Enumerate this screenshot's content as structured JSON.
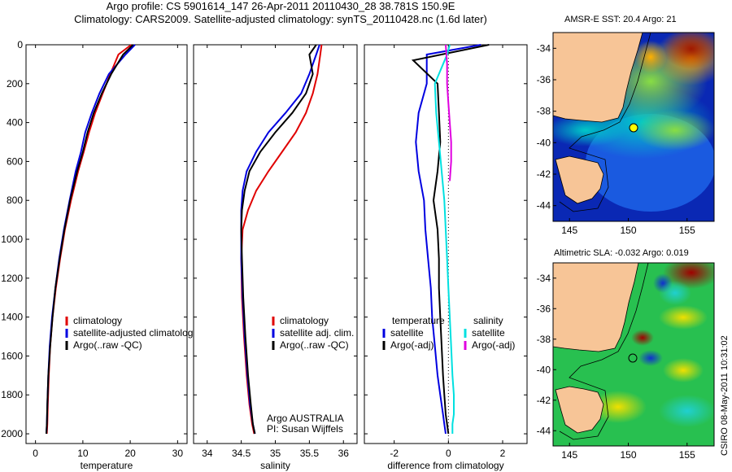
{
  "header": {
    "title_line1": "Argo profile: CS 5901614_147 26-Apr-2011 20110430_28 38.781S 150.9E",
    "title_line2": "Climatology: CARS2009. Satellite-adjusted climatology: synTS_20110428.nc (1.6d later)"
  },
  "map_sst": {
    "title": "AMSR-E SST: 20.4 Argo: 21"
  },
  "map_sla": {
    "title": "Altimetric SLA: -0.032 Argo: 0.019"
  },
  "stamp": "CSIRO 08-May-2011 10:31:02",
  "colors": {
    "climatology": "#e00000",
    "satellite": "#0000e0",
    "argo": "#000000",
    "satellite_sal": "#00e0e0",
    "argo_sal": "#e000e0",
    "land": "#f7c597"
  },
  "chart_data": [
    {
      "type": "line",
      "title": "",
      "xlabel": "temperature",
      "ylabel": "",
      "xlim": [
        -2,
        32
      ],
      "ylim": [
        0,
        2050
      ],
      "y_inverted": true,
      "xticks": [
        0,
        10,
        20,
        30
      ],
      "yticks": [
        0,
        200,
        400,
        600,
        800,
        1000,
        1200,
        1400,
        1600,
        1800,
        2000
      ],
      "legend": [
        "climatology",
        "satellite-adjusted climatology",
        "Argo(..raw -QC)"
      ],
      "legend_position": "lower-right",
      "series": [
        {
          "name": "climatology",
          "color": "#e00000",
          "x": [
            20.2,
            17.5,
            15.8,
            14.2,
            12.6,
            11.3,
            10.2,
            9.0,
            7.5,
            6.2,
            5.2,
            4.3,
            3.6,
            3.1,
            2.8,
            2.6,
            2.5,
            2.4
          ],
          "y": [
            0,
            50,
            150,
            250,
            350,
            450,
            550,
            650,
            800,
            950,
            1100,
            1250,
            1400,
            1550,
            1700,
            1850,
            1950,
            2000
          ]
        },
        {
          "name": "satellite-adjusted climatology",
          "color": "#0000e0",
          "x": [
            21.0,
            19.0,
            15.5,
            13.5,
            11.9,
            10.5,
            9.6,
            8.5,
            7.2,
            6.0,
            5.0,
            4.2,
            3.5,
            3.0,
            2.7,
            2.5,
            2.4,
            2.3
          ],
          "y": [
            0,
            50,
            150,
            250,
            350,
            450,
            550,
            650,
            800,
            950,
            1100,
            1250,
            1400,
            1550,
            1700,
            1850,
            1950,
            2000
          ]
        },
        {
          "name": "Argo(..raw -QC)",
          "color": "#000000",
          "x": [
            20.6,
            18.5,
            16.0,
            14.0,
            12.3,
            11.0,
            10.0,
            8.8,
            7.3,
            6.1,
            5.1,
            4.2,
            3.6,
            3.1,
            2.7,
            2.5,
            2.4,
            2.3
          ],
          "y": [
            0,
            50,
            150,
            250,
            350,
            450,
            550,
            650,
            800,
            950,
            1100,
            1250,
            1400,
            1550,
            1700,
            1850,
            1950,
            2000
          ]
        }
      ]
    },
    {
      "type": "line",
      "title": "",
      "xlabel": "salinity",
      "ylabel": "",
      "xlim": [
        33.8,
        36.2
      ],
      "ylim": [
        0,
        2050
      ],
      "y_inverted": true,
      "xticks": [
        34,
        34.5,
        35,
        35.5,
        36
      ],
      "yticks": [
        0,
        200,
        400,
        600,
        800,
        1000,
        1200,
        1400,
        1600,
        1800,
        2000
      ],
      "legend": [
        "climatology",
        "satellite adj. clim.",
        "Argo(..raw -QC)"
      ],
      "legend_position": "lower-right",
      "annotation": [
        "Argo AUSTRALIA",
        "PI: Susan Wijffels"
      ],
      "series": [
        {
          "name": "climatology",
          "color": "#e00000",
          "x": [
            35.68,
            35.66,
            35.62,
            35.55,
            35.45,
            35.3,
            35.1,
            34.9,
            34.72,
            34.6,
            34.52,
            34.5,
            34.51,
            34.54,
            34.58,
            34.62,
            34.66,
            34.69
          ],
          "y": [
            0,
            50,
            150,
            250,
            350,
            450,
            550,
            650,
            750,
            850,
            950,
            1100,
            1300,
            1500,
            1700,
            1850,
            1950,
            2000
          ]
        },
        {
          "name": "satellite adj. clim.",
          "color": "#0000e0",
          "x": [
            35.65,
            35.6,
            35.5,
            35.38,
            35.15,
            34.9,
            34.72,
            34.58,
            34.52,
            34.5,
            34.5,
            34.5,
            34.52,
            34.55,
            34.59,
            34.63,
            34.67,
            34.7
          ],
          "y": [
            0,
            50,
            150,
            250,
            350,
            450,
            550,
            650,
            750,
            850,
            950,
            1100,
            1300,
            1500,
            1700,
            1850,
            1950,
            2000
          ]
        },
        {
          "name": "Argo(..raw -QC)",
          "color": "#000000",
          "x": [
            35.6,
            35.5,
            35.55,
            35.45,
            35.25,
            35.0,
            34.78,
            34.62,
            34.55,
            34.51,
            34.5,
            34.51,
            34.53,
            34.56,
            34.6,
            34.64,
            34.67,
            34.7
          ],
          "y": [
            0,
            50,
            150,
            250,
            350,
            450,
            550,
            650,
            750,
            850,
            950,
            1100,
            1300,
            1500,
            1700,
            1850,
            1950,
            2000
          ]
        }
      ]
    },
    {
      "type": "line",
      "title": "",
      "xlabel": "difference from climatology",
      "ylabel": "",
      "xlim": [
        -3.1,
        2.9
      ],
      "ylim": [
        0,
        2050
      ],
      "y_inverted": true,
      "xticks": [
        -2,
        0,
        2
      ],
      "yticks": [
        0,
        200,
        400,
        600,
        800,
        1000,
        1200,
        1400,
        1600,
        1800,
        2000
      ],
      "reference_line_x": 0,
      "legend_temperature": {
        "heading": "temperature",
        "items": [
          "satellite",
          "Argo(-adj)"
        ]
      },
      "legend_salinity": {
        "heading": "salinity",
        "items": [
          "satellite",
          "Argo(-adj)"
        ]
      },
      "legend_position": "lower-right",
      "series": [
        {
          "name": "temperature satellite",
          "color": "#0000e0",
          "x": [
            1.2,
            -0.8,
            -0.8,
            -1.1,
            -1.2,
            -1.1,
            -0.9,
            -0.85,
            -0.75,
            -0.65,
            -0.6,
            -0.5,
            -0.4,
            -0.3,
            -0.2,
            -0.15,
            -0.1
          ],
          "y": [
            0,
            50,
            200,
            350,
            500,
            650,
            800,
            950,
            1100,
            1250,
            1400,
            1550,
            1700,
            1800,
            1900,
            1950,
            2000
          ]
        },
        {
          "name": "temperature Argo(-adj)",
          "color": "#000000",
          "x": [
            1.5,
            -1.3,
            -0.4,
            -0.35,
            -0.3,
            -0.4,
            -0.55,
            -0.4,
            -0.35,
            -0.35,
            -0.3,
            -0.25,
            -0.2,
            -0.15,
            -0.1,
            -0.05,
            0.0
          ],
          "y": [
            0,
            80,
            200,
            350,
            500,
            650,
            800,
            950,
            1100,
            1250,
            1400,
            1550,
            1700,
            1800,
            1900,
            1950,
            2000
          ]
        },
        {
          "name": "salinity satellite",
          "color": "#00e0e0",
          "x": [
            0.05,
            -0.05,
            -0.5,
            -0.45,
            -0.35,
            -0.25,
            -0.15,
            -0.1,
            -0.05,
            0.0,
            0.05,
            0.1,
            0.15,
            0.2,
            0.2,
            0.15,
            0.15
          ],
          "y": [
            0,
            50,
            200,
            350,
            500,
            650,
            800,
            950,
            1100,
            1250,
            1400,
            1550,
            1700,
            1800,
            1900,
            1950,
            2000
          ]
        },
        {
          "name": "salinity Argo(-adj)",
          "color": "#e000e0",
          "x": [
            -0.1,
            -0.05,
            -0.05,
            0.0,
            0.05,
            0.1,
            0.1,
            0.05
          ],
          "y": [
            0,
            100,
            200,
            300,
            400,
            500,
            600,
            700
          ]
        }
      ]
    }
  ],
  "maps": {
    "lon_ticks": [
      145,
      150,
      155
    ],
    "lat_ticks": [
      -34,
      -36,
      -38,
      -40,
      -42,
      -44
    ],
    "argo_position": {
      "lon": 150.9,
      "lat": -38.781
    }
  }
}
